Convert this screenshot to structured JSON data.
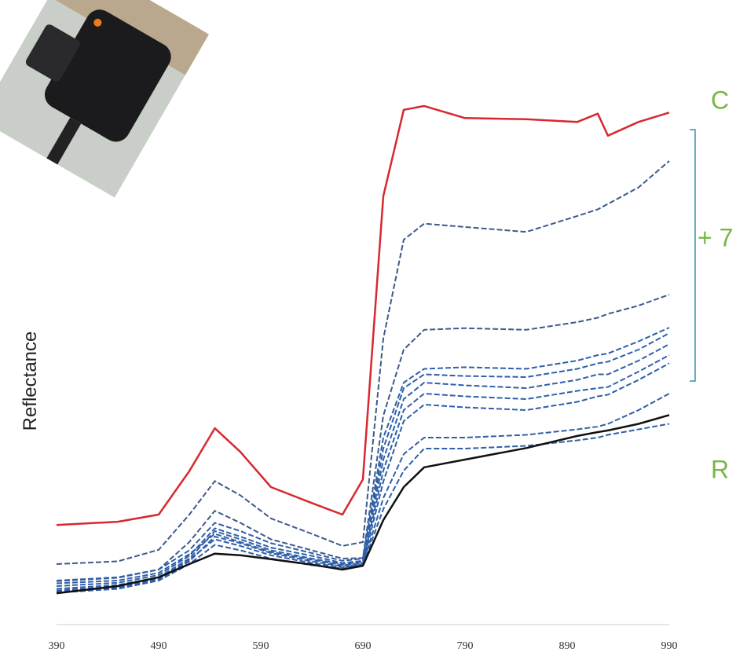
{
  "chart_data": {
    "type": "line",
    "y_label": "Reflectance",
    "x": [
      390,
      450,
      490,
      520,
      545,
      570,
      600,
      640,
      670,
      690,
      710,
      730,
      750,
      790,
      850,
      900,
      920,
      930,
      960,
      990
    ],
    "xlim": [
      390,
      990
    ],
    "xticks": [
      390,
      490,
      590,
      690,
      790,
      890,
      990
    ],
    "ylim": [
      0,
      100
    ],
    "grid": false,
    "annotations": [
      "C",
      "+ 7",
      "R"
    ],
    "series": [
      {
        "color": "#d7282f",
        "dashed": false,
        "values": [
          18.1,
          18.7,
          20,
          27.9,
          35.7,
          31.4,
          25,
          22.1,
          20,
          26.4,
          77.9,
          93.6,
          94.3,
          92.1,
          91.9,
          91.4,
          92.9,
          88.9,
          91.4,
          93.1
        ]
      },
      {
        "color": "#3d5a8a",
        "dashed": true,
        "values": [
          11,
          11.5,
          13.6,
          20,
          26.1,
          23.5,
          19.3,
          16.5,
          14.3,
          15,
          52,
          70,
          72.9,
          72.3,
          71.4,
          74.3,
          75.5,
          76.5,
          79.5,
          84.3
        ]
      },
      {
        "color": "#3d5a8a",
        "dashed": true,
        "values": [
          7.9,
          8.5,
          10,
          15,
          20.7,
          18.5,
          15.5,
          13.5,
          12,
          12.1,
          38,
          50,
          53.6,
          53.9,
          53.6,
          55,
          55.8,
          56.5,
          58,
          60
        ]
      },
      {
        "color": "#2f5fa8",
        "dashed": true,
        "values": [
          8,
          8.6,
          10,
          13.5,
          18.5,
          17,
          14.8,
          13,
          11.6,
          12,
          34,
          44,
          46.5,
          46.8,
          46.5,
          48,
          49,
          49.3,
          51.5,
          54
        ]
      },
      {
        "color": "#2f5fa8",
        "dashed": true,
        "values": [
          7,
          7.6,
          9,
          12.5,
          17.5,
          16,
          14,
          12.5,
          11.2,
          11.6,
          32,
          43,
          45.5,
          45.2,
          45,
          46.5,
          47.5,
          47.8,
          50,
          53
        ]
      },
      {
        "color": "#2f5fa8",
        "dashed": true,
        "values": [
          6.5,
          7.2,
          8.6,
          12,
          17,
          15.5,
          13.5,
          12,
          11,
          11.4,
          30,
          41,
          44,
          43.5,
          43,
          44.5,
          45.5,
          45.5,
          48,
          51
        ]
      },
      {
        "color": "#2f5fa8",
        "dashed": true,
        "values": [
          7.5,
          8,
          9.4,
          12.8,
          16.5,
          15,
          13.2,
          11.8,
          10.8,
          11.2,
          28,
          39,
          42,
          41.5,
          41,
          42.5,
          43,
          43.2,
          46,
          49
        ]
      },
      {
        "color": "#2f5fa8",
        "dashed": true,
        "values": [
          6,
          6.7,
          8.2,
          11.5,
          16,
          14.8,
          13,
          11.5,
          10.6,
          11,
          26,
          37,
          40,
          39.5,
          39,
          40.5,
          41.5,
          41.8,
          44.5,
          47.5
        ]
      },
      {
        "color": "#2f5fa8",
        "dashed": true,
        "values": [
          6.2,
          6.9,
          8.4,
          11.8,
          15.5,
          14.3,
          12.6,
          11.2,
          10.4,
          10.9,
          23,
          31,
          34,
          34,
          34.5,
          35.5,
          36,
          36.5,
          39,
          42
        ]
      },
      {
        "color": "#2f5fa8",
        "dashed": true,
        "values": [
          5.8,
          6.5,
          8,
          11,
          14.5,
          13.5,
          12,
          10.8,
          10.2,
          10.8,
          21,
          28,
          32,
          32,
          32.5,
          33.5,
          34,
          34.5,
          35.5,
          36.5
        ]
      },
      {
        "color": "#111111",
        "dashed": false,
        "values": [
          5.7,
          7,
          8.6,
          11,
          12.9,
          12.6,
          11.9,
          10.9,
          10,
          10.7,
          19,
          25,
          28.6,
          30,
          32.1,
          34.3,
          35,
          35.3,
          36.5,
          38.1
        ]
      }
    ]
  }
}
